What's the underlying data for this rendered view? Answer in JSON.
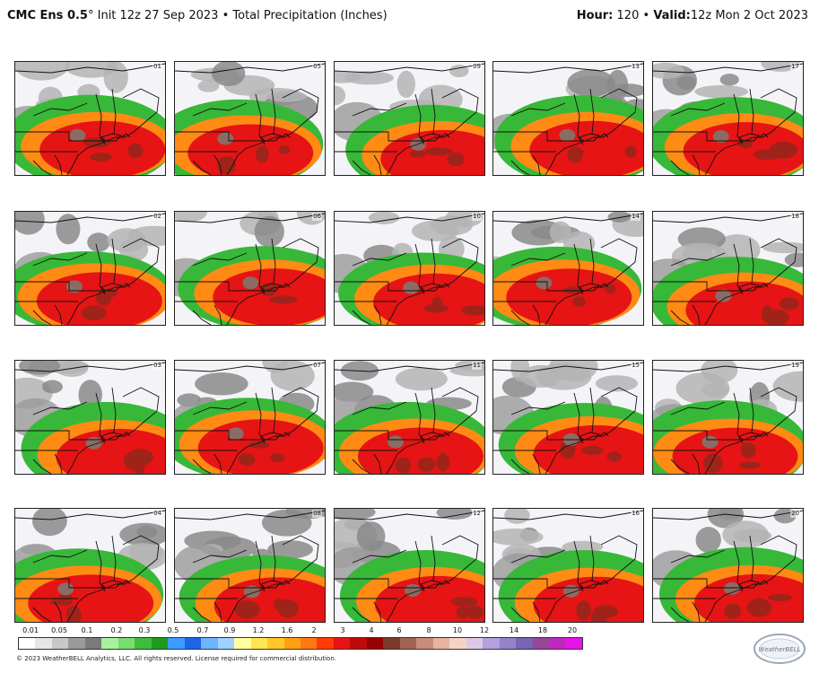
{
  "header": {
    "model": "CMC Ens 0.5",
    "degree": "°",
    "init_label": "Init 12z 27 Sep 2023",
    "separator": "•",
    "product": "Total Precipitation (Inches)",
    "hour_label": "Hour:",
    "hour_value": "120",
    "valid_label": "Valid:",
    "valid_value": "12z Mon 2 Oct 2023"
  },
  "members": [
    [
      "01",
      "05",
      "09",
      "13",
      "17"
    ],
    [
      "02",
      "06",
      "10",
      "14",
      "18"
    ],
    [
      "03",
      "07",
      "11",
      "15",
      "19"
    ],
    [
      "04",
      "08",
      "12",
      "16",
      "20"
    ]
  ],
  "legend": {
    "ticks": [
      "0.01",
      "0.05",
      "0.1",
      "0.2",
      "0.3",
      "0.5",
      "0.7",
      "0.9",
      "1.2",
      "1.6",
      "2",
      "3",
      "4",
      "6",
      "8",
      "10",
      "12",
      "14",
      "18",
      "20"
    ],
    "colors": [
      "#ffffff",
      "#e6e6e6",
      "#c8c8c8",
      "#9a9a9a",
      "#7a7a7a",
      "#a8f0a0",
      "#78dc6e",
      "#3cbe3c",
      "#1e9b1e",
      "#3c9bff",
      "#1e64e6",
      "#6eb4ff",
      "#a0d2ff",
      "#ffffa0",
      "#ffe650",
      "#ffc828",
      "#ffa014",
      "#ff7814",
      "#ff3c0a",
      "#e61414",
      "#be0a0a",
      "#960000",
      "#7a3c28",
      "#a06450",
      "#c88c78",
      "#e6b4a0",
      "#f5d2c8",
      "#dcc8e6",
      "#b4a0dc",
      "#9682c8",
      "#7864b4",
      "#964696",
      "#be28be",
      "#e614e6"
    ]
  },
  "copyright": "© 2023 WeatherBELL Analytics, LLC. All rights reserved. License required for commercial distribution.",
  "logo_text": "WeatherBELL"
}
